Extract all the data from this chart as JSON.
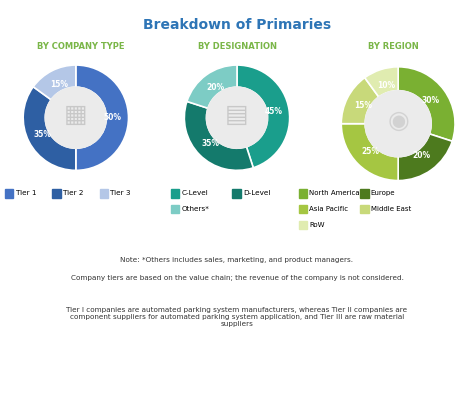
{
  "title": "Breakdown of Primaries",
  "title_color": "#2e75b6",
  "subtitle1": "BY COMPANY TYPE",
  "subtitle2": "BY DESIGNATION",
  "subtitle3": "BY REGION",
  "subtitle_color": "#7ab648",
  "donut1_values": [
    50,
    35,
    15
  ],
  "donut1_labels": [
    "50%",
    "35%",
    "15%"
  ],
  "donut1_colors": [
    "#4472c4",
    "#2e5fa3",
    "#b4c7e7"
  ],
  "donut1_legend": [
    "Tier 1",
    "Tier 2",
    "Tier 3"
  ],
  "donut2_values": [
    45,
    35,
    20
  ],
  "donut2_labels": [
    "45%",
    "35%",
    "20%"
  ],
  "donut2_colors": [
    "#1a9e8c",
    "#147a6c",
    "#7dccc5"
  ],
  "donut2_legend": [
    "C-Level",
    "D-Level",
    "Others*"
  ],
  "donut3_values": [
    30,
    20,
    25,
    15,
    10
  ],
  "donut3_labels": [
    "30%",
    "20%",
    "25%",
    "15%",
    "10%"
  ],
  "donut3_colors": [
    "#7ab032",
    "#4d7a1e",
    "#a5c642",
    "#c8d97a",
    "#e0ecb0"
  ],
  "donut3_legend": [
    "North America",
    "Europe",
    "Asia Pacific",
    "Middle East",
    "RoW"
  ],
  "note1": "Note: *Others includes sales, marketing, and product managers.",
  "note2": "Company tiers are based on the value chain; the revenue of the company is not considered.",
  "note3": "Tier I companies are automated parking system manufacturers, whereas Tier II companies are\ncomponent suppliers for automated parking system application, and Tier III are raw material\nsuppliers",
  "bg_color": "#ffffff"
}
